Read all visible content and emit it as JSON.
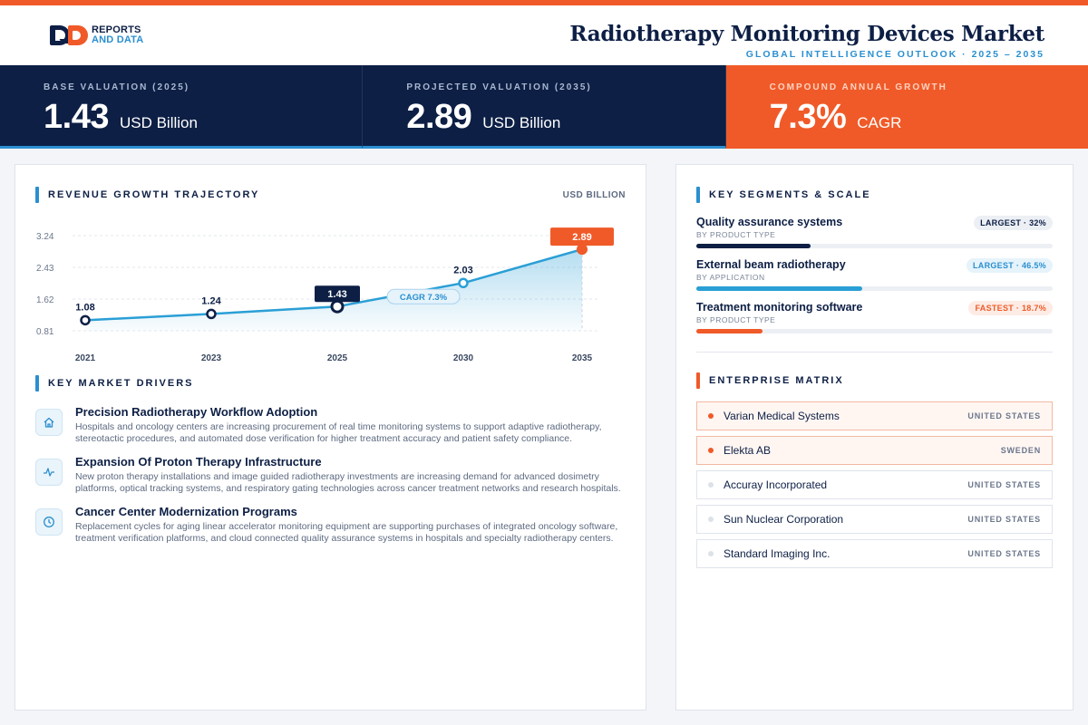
{
  "brand": {
    "line1": "REPORTS",
    "line2": "AND DATA"
  },
  "header": {
    "title": "Radiotherapy Monitoring Devices Market",
    "subtitle": "GLOBAL INTELLIGENCE OUTLOOK  ·  2025 – 2035"
  },
  "kpis": [
    {
      "label": "BASE VALUATION (2025)",
      "value": "1.43",
      "unit": "USD Billion"
    },
    {
      "label": "PROJECTED VALUATION (2035)",
      "value": "2.89",
      "unit": "USD Billion"
    },
    {
      "label": "COMPOUND ANNUAL GROWTH",
      "value": "7.3%",
      "unit": "CAGR"
    }
  ],
  "trajectory": {
    "title": "REVENUE GROWTH TRAJECTORY",
    "unit": "USD BILLION"
  },
  "chart_data": {
    "type": "area",
    "x": [
      "2021",
      "2023",
      "2025",
      "2030",
      "2035"
    ],
    "values": [
      1.08,
      1.24,
      1.43,
      2.03,
      2.89
    ],
    "value_labels": [
      "1.08",
      "1.24",
      "1.43",
      "2.03",
      "2.89"
    ],
    "y_ticks": [
      "3.24",
      "2.43",
      "1.62",
      "0.81"
    ],
    "ylim": [
      0.81,
      3.24
    ],
    "annotation": "CAGR 7.3%",
    "grid": true,
    "colors": {
      "line": "#2a9fd6",
      "highlight": "#0d1f45",
      "final": "#f05a28"
    }
  },
  "drivers": {
    "title": "KEY MARKET DRIVERS",
    "items": [
      {
        "icon": "home-icon",
        "title": "Precision Radiotherapy Workflow Adoption",
        "text": "Hospitals and oncology centers are increasing procurement of real time monitoring systems to support adaptive radiotherapy, stereotactic procedures, and automated dose verification for higher treatment accuracy and patient safety compliance."
      },
      {
        "icon": "pulse-icon",
        "title": "Expansion Of Proton Therapy Infrastructure",
        "text": "New proton therapy installations and image guided radiotherapy investments are increasing demand for advanced dosimetry platforms, optical tracking systems, and respiratory gating technologies across cancer treatment networks and research hospitals."
      },
      {
        "icon": "clock-icon",
        "title": "Cancer Center Modernization Programs",
        "text": "Replacement cycles for aging linear accelerator monitoring equipment are supporting purchases of integrated oncology software, treatment verification platforms, and cloud connected quality assurance systems in hospitals and specialty radiotherapy centers."
      }
    ]
  },
  "segments": {
    "title": "KEY SEGMENTS & SCALE",
    "items": [
      {
        "name": "Quality assurance systems",
        "sub": "BY PRODUCT TYPE",
        "badge": "LARGEST · 32%",
        "share": 0.32,
        "color": "#0d1f45",
        "badge_bg": "#eceff4",
        "badge_fg": "#0d1f45"
      },
      {
        "name": "External beam radiotherapy",
        "sub": "BY APPLICATION",
        "badge": "LARGEST · 46.5%",
        "share": 0.465,
        "color": "#2a9fd6",
        "badge_bg": "#e6f3fb",
        "badge_fg": "#2a8fd0"
      },
      {
        "name": "Treatment monitoring software",
        "sub": "BY PRODUCT TYPE",
        "badge": "FASTEST · 18.7%",
        "share": 0.187,
        "color": "#f05a28",
        "badge_bg": "#fdece5",
        "badge_fg": "#f05a28"
      }
    ]
  },
  "matrix": {
    "title": "ENTERPRISE MATRIX",
    "rows": [
      {
        "name": "Varian Medical Systems",
        "country": "UNITED STATES",
        "highlight": true
      },
      {
        "name": "Elekta AB",
        "country": "SWEDEN",
        "highlight": true
      },
      {
        "name": "Accuray Incorporated",
        "country": "UNITED STATES",
        "highlight": false
      },
      {
        "name": "Sun Nuclear Corporation",
        "country": "UNITED STATES",
        "highlight": false
      },
      {
        "name": "Standard Imaging Inc.",
        "country": "UNITED STATES",
        "highlight": false
      }
    ]
  }
}
